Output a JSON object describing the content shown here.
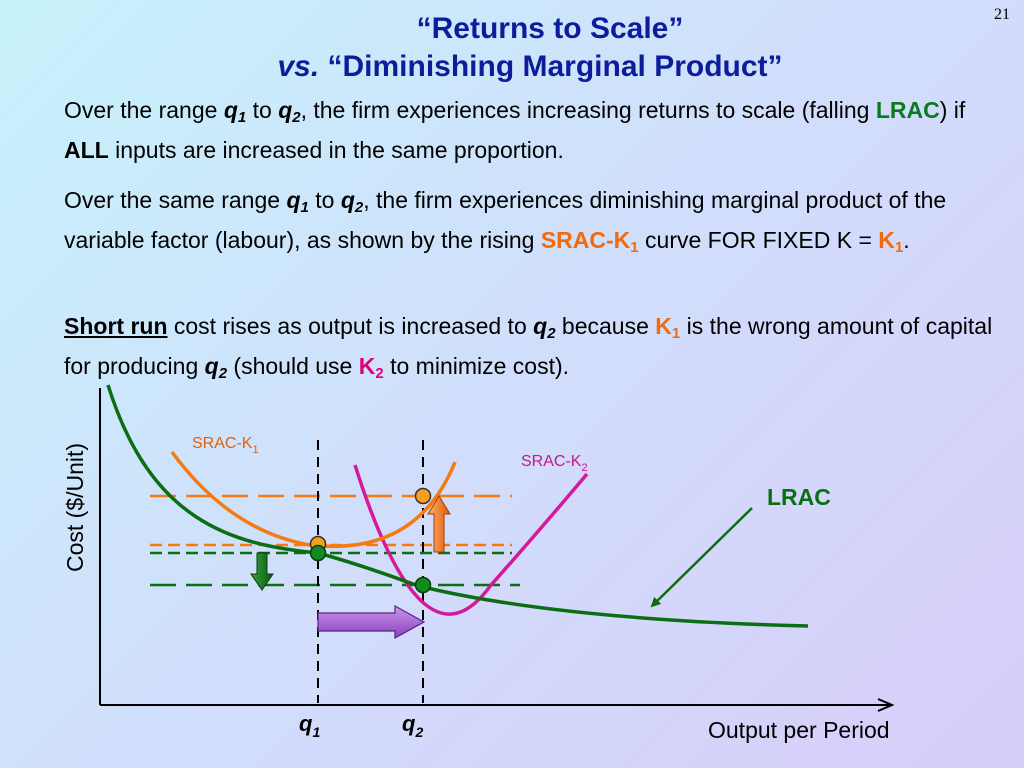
{
  "page_number": "21",
  "title": {
    "line1": "“Returns to Scale”",
    "line2_em": "vs.",
    "line2_rest": " “Diminishing Marginal Product”"
  },
  "paragraphs": {
    "p1": {
      "t1": "Over the range ",
      "q1": "q",
      "q1_sub": "1",
      "t2": " to ",
      "q2": "q",
      "q2_sub": "2",
      "t3": ", the firm experiences increasing returns to scale (falling ",
      "lrac": "LRAC",
      "t4": ") if ",
      "all": "ALL",
      "t5": " inputs are increased in the same proportion."
    },
    "p2": {
      "t1": "Over the same range ",
      "q1": "q",
      "q1_sub": "1",
      "t2": " to ",
      "q2": "q",
      "q2_sub": "2",
      "t3": ", the firm experiences diminishing marginal product of the variable factor (labour), as shown by the rising ",
      "srac": "SRAC-K",
      "srac_sub": "1",
      "t4": " curve FOR FIXED K = ",
      "k": "K",
      "k_sub": "1",
      "t5": "."
    },
    "p3": {
      "short_run": "Short run",
      "t1": " cost rises as output is increased to ",
      "q2": "q",
      "q2_sub": "2",
      "t2": " because ",
      "k1": "K",
      "k1_sub": "1",
      "t3": " is the wrong amount of capital for producing ",
      "q2b": "q",
      "q2b_sub": "2",
      "t4": " (should use ",
      "k2": "K",
      "k2_sub": "2",
      "t5": " to minimize cost)."
    }
  },
  "diagram": {
    "y_axis_label": "Cost ($/Unit)",
    "x_axis_label": "Output per Period",
    "q1_label": "q",
    "q1_sub": "1",
    "q2_label": "q",
    "q2_sub": "2",
    "srac_k1_label": "SRAC-K",
    "srac_k1_sub": "1",
    "srac_k2_label": "SRAC-K",
    "srac_k2_sub": "2",
    "lrac_label": "LRAC"
  },
  "colors": {
    "title": "#0b1d9a",
    "srac_k1": "#f57a12",
    "srac_k2": "#d4199a",
    "lrac": "#0b6e12",
    "point_fill_orange": "#f7a020",
    "arrow_purple": "#a45bd0",
    "axis": "#000000"
  }
}
